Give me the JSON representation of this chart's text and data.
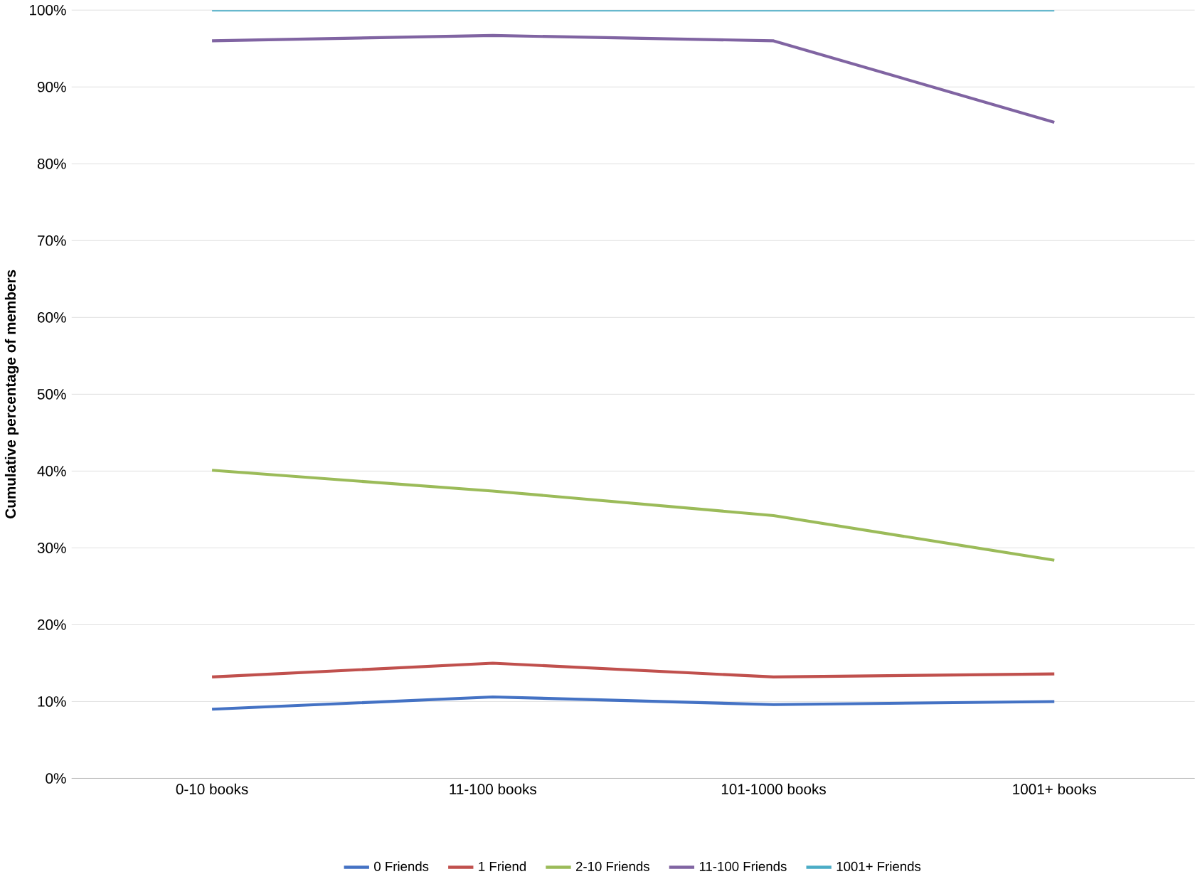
{
  "chart_data": {
    "type": "line",
    "ylabel": "Cumulative percentage of members",
    "categories": [
      "0-10 books",
      "11-100 books",
      "101-1000 books",
      "1001+ books"
    ],
    "series": [
      {
        "name": "0 Friends",
        "color": "#4472c4",
        "values": [
          9.0,
          10.6,
          9.6,
          10.0
        ]
      },
      {
        "name": "1 Friend",
        "color": "#c0504d",
        "values": [
          13.2,
          15.0,
          13.2,
          13.6
        ]
      },
      {
        "name": "2-10 Friends",
        "color": "#9bbb59",
        "values": [
          40.1,
          37.4,
          34.2,
          28.4
        ]
      },
      {
        "name": "11-100 Friends",
        "color": "#8064a2",
        "values": [
          96.0,
          96.7,
          96.0,
          85.4
        ]
      },
      {
        "name": "1001+ Friends",
        "color": "#4bacc6",
        "values": [
          100,
          100,
          100,
          100
        ]
      }
    ],
    "ylim": [
      0,
      100
    ],
    "yticks": [
      {
        "value": 0,
        "label": "0%"
      },
      {
        "value": 10,
        "label": "10%"
      },
      {
        "value": 20,
        "label": "20%"
      },
      {
        "value": 30,
        "label": "30%"
      },
      {
        "value": 40,
        "label": "40%"
      },
      {
        "value": 50,
        "label": "50%"
      },
      {
        "value": 60,
        "label": "60%"
      },
      {
        "value": 70,
        "label": "70%"
      },
      {
        "value": 80,
        "label": "80%"
      },
      {
        "value": 90,
        "label": "90%"
      },
      {
        "value": 100,
        "label": "100%"
      }
    ],
    "grid": "y",
    "legend": "bottom",
    "marker": "none",
    "line_style": "solid"
  }
}
